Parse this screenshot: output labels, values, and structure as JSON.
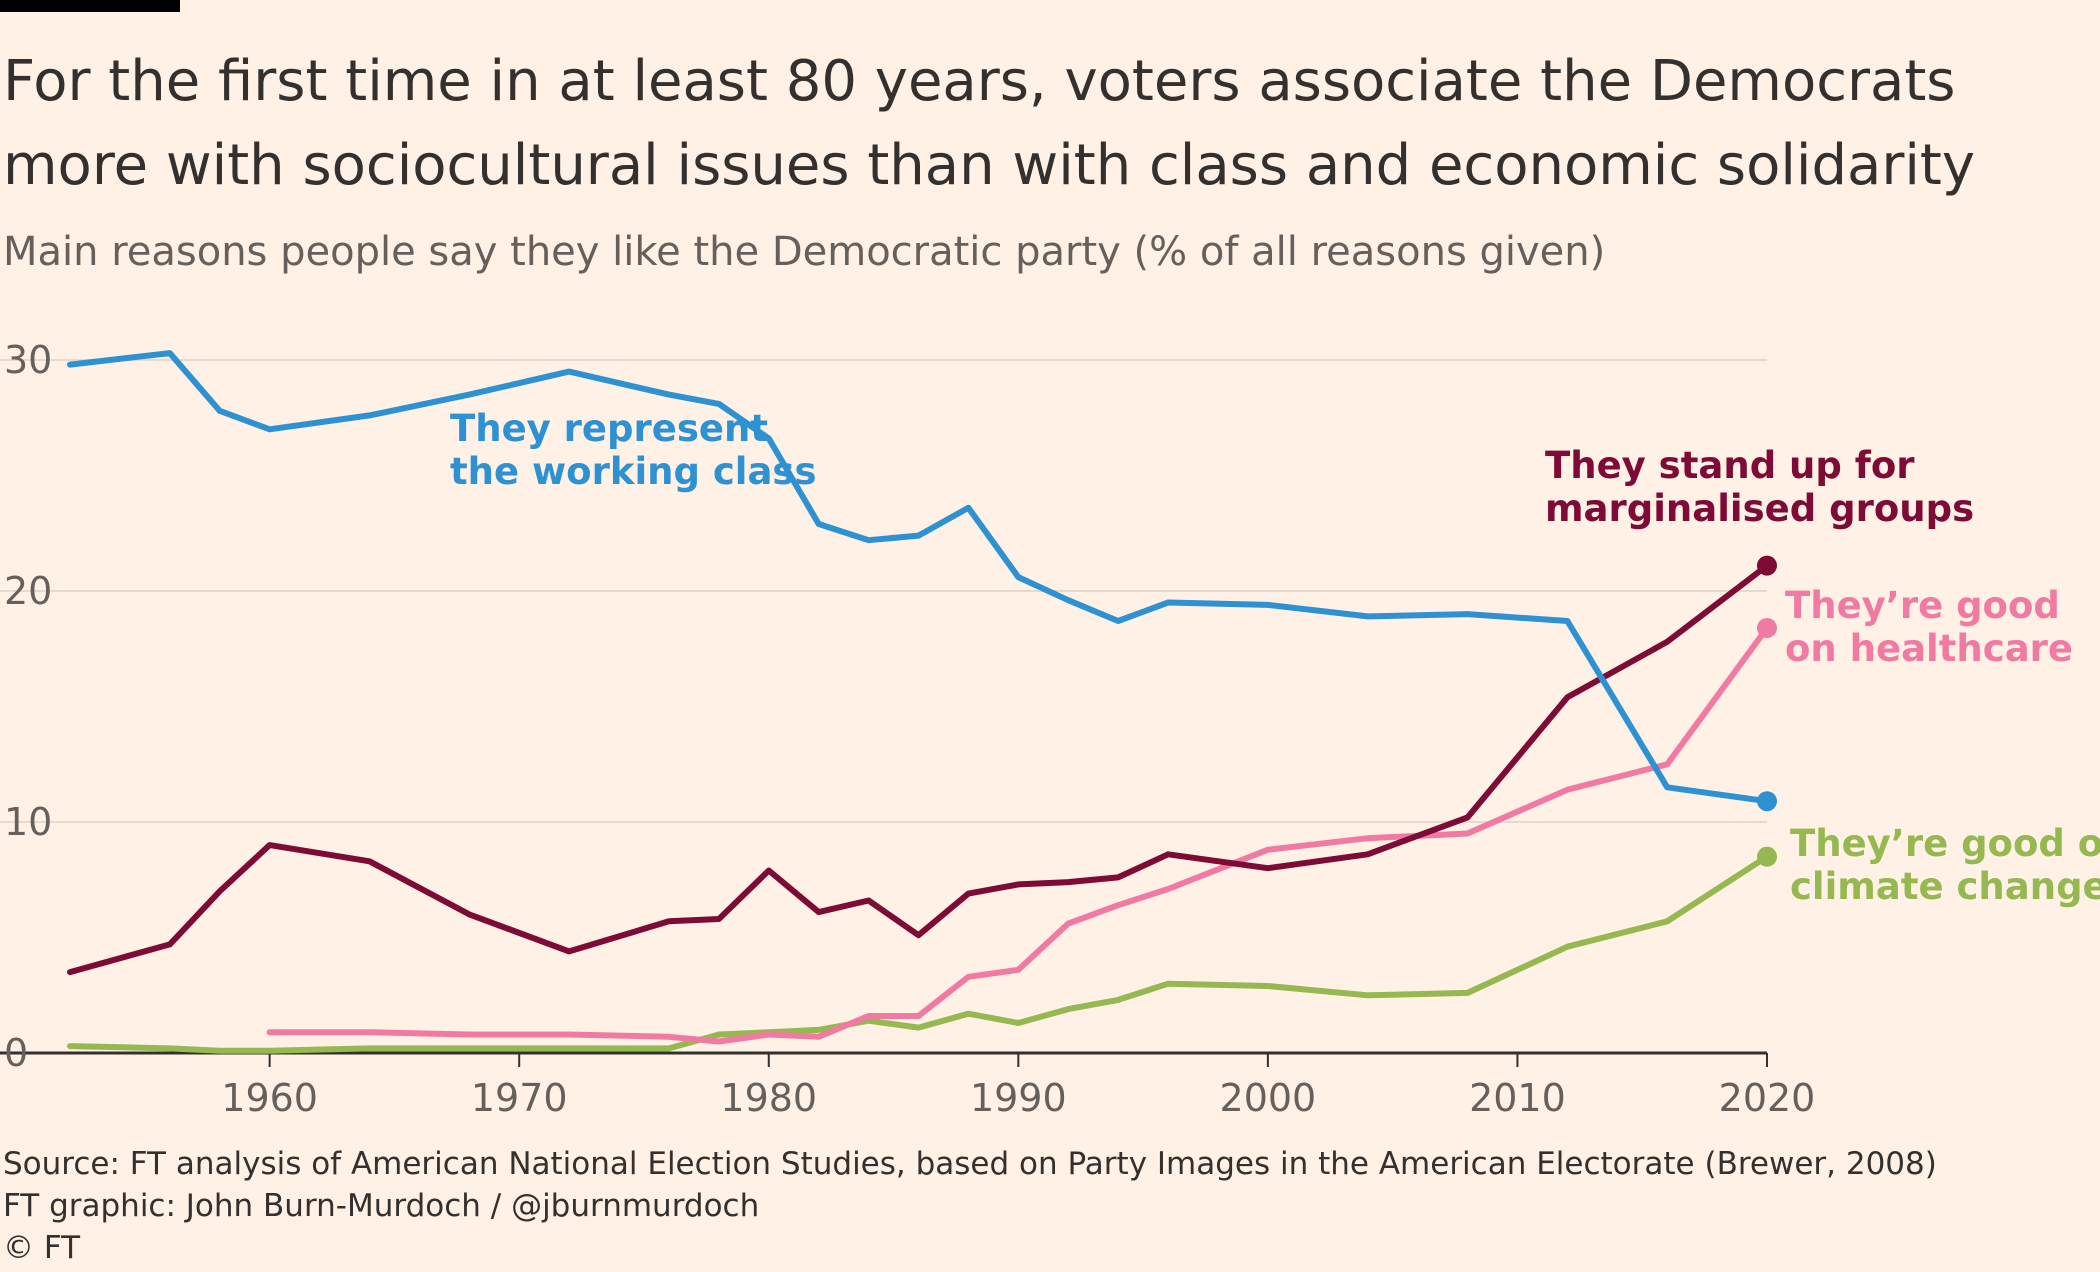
{
  "header": {
    "title": "For the first time in at least 80 years, voters associate the Democrats more with sociocultural issues than with class and economic solidarity",
    "subtitle": "Main reasons people say they like the Democratic party (% of all reasons given)"
  },
  "footer": {
    "source": "Source: FT analysis of American National Election Studies, based on Party Images in the American Electorate (Brewer, 2008)",
    "credit": "FT graphic: John Burn-Murdoch / @jburnmurdoch",
    "copyright": "© FT"
  },
  "chart_data": {
    "type": "line",
    "title": "For the first time in at least 80 years, voters associate the Democrats more with sociocultural issues than with class and economic solidarity",
    "subtitle": "Main reasons people say they like the Democratic party (% of all reasons given)",
    "xlim": [
      1952,
      2020
    ],
    "ylim": [
      0,
      30
    ],
    "x_ticks": [
      "1960",
      "1970",
      "1980",
      "1990",
      "2000",
      "2010",
      "2020"
    ],
    "y_ticks": [
      "0",
      "10",
      "20",
      "30"
    ],
    "grid": true,
    "legend": "inline labels",
    "series": [
      {
        "name": "They represent the working class",
        "label_lines": [
          "They represent",
          "the working class"
        ],
        "color": "#2e91d2",
        "end_marker": true,
        "points": [
          [
            1952,
            29.8
          ],
          [
            1956,
            30.3
          ],
          [
            1958,
            27.8
          ],
          [
            1960,
            27.0
          ],
          [
            1964,
            27.6
          ],
          [
            1968,
            28.5
          ],
          [
            1972,
            29.5
          ],
          [
            1976,
            28.5
          ],
          [
            1978,
            28.1
          ],
          [
            1980,
            26.6
          ],
          [
            1982,
            22.9
          ],
          [
            1984,
            22.2
          ],
          [
            1986,
            22.4
          ],
          [
            1988,
            23.6
          ],
          [
            1990,
            20.6
          ],
          [
            1992,
            19.6
          ],
          [
            1994,
            18.7
          ],
          [
            1996,
            19.5
          ],
          [
            2000,
            19.4
          ],
          [
            2004,
            18.9
          ],
          [
            2008,
            19.0
          ],
          [
            2012,
            18.7
          ],
          [
            2016,
            11.5
          ],
          [
            2020,
            10.9
          ]
        ]
      },
      {
        "name": "They stand up for marginalised groups",
        "label_lines": [
          "They stand up for",
          "marginalised groups"
        ],
        "color": "#7d0b36",
        "end_marker": true,
        "points": [
          [
            1952,
            3.5
          ],
          [
            1956,
            4.7
          ],
          [
            1958,
            7.0
          ],
          [
            1960,
            9.0
          ],
          [
            1964,
            8.3
          ],
          [
            1968,
            6.0
          ],
          [
            1972,
            4.4
          ],
          [
            1976,
            5.7
          ],
          [
            1978,
            5.8
          ],
          [
            1980,
            7.9
          ],
          [
            1982,
            6.1
          ],
          [
            1984,
            6.6
          ],
          [
            1986,
            5.1
          ],
          [
            1988,
            6.9
          ],
          [
            1990,
            7.3
          ],
          [
            1992,
            7.4
          ],
          [
            1994,
            7.6
          ],
          [
            1996,
            8.6
          ],
          [
            2000,
            8.0
          ],
          [
            2004,
            8.6
          ],
          [
            2008,
            10.2
          ],
          [
            2012,
            15.4
          ],
          [
            2016,
            17.8
          ],
          [
            2020,
            21.1
          ]
        ]
      },
      {
        "name": "They're good on healthcare",
        "label_lines": [
          "They’re good",
          "on healthcare"
        ],
        "color": "#f17aa3",
        "end_marker": true,
        "points": [
          [
            1960,
            0.9
          ],
          [
            1964,
            0.9
          ],
          [
            1968,
            0.8
          ],
          [
            1972,
            0.8
          ],
          [
            1976,
            0.7
          ],
          [
            1978,
            0.5
          ],
          [
            1980,
            0.8
          ],
          [
            1982,
            0.7
          ],
          [
            1984,
            1.6
          ],
          [
            1986,
            1.6
          ],
          [
            1988,
            3.3
          ],
          [
            1990,
            3.6
          ],
          [
            1992,
            5.6
          ],
          [
            1994,
            6.4
          ],
          [
            1996,
            7.1
          ],
          [
            2000,
            8.8
          ],
          [
            2004,
            9.3
          ],
          [
            2008,
            9.5
          ],
          [
            2012,
            11.4
          ],
          [
            2016,
            12.5
          ],
          [
            2020,
            18.4
          ]
        ]
      },
      {
        "name": "They're good on climate change",
        "label_lines": [
          "They’re good on",
          "climate change"
        ],
        "color": "#96b850",
        "end_marker": true,
        "points": [
          [
            1952,
            0.3
          ],
          [
            1956,
            0.2
          ],
          [
            1958,
            0.1
          ],
          [
            1960,
            0.1
          ],
          [
            1964,
            0.2
          ],
          [
            1968,
            0.2
          ],
          [
            1972,
            0.2
          ],
          [
            1976,
            0.2
          ],
          [
            1978,
            0.8
          ],
          [
            1980,
            0.9
          ],
          [
            1982,
            1.0
          ],
          [
            1984,
            1.4
          ],
          [
            1986,
            1.1
          ],
          [
            1988,
            1.7
          ],
          [
            1990,
            1.3
          ],
          [
            1992,
            1.9
          ],
          [
            1994,
            2.3
          ],
          [
            1996,
            3.0
          ],
          [
            2000,
            2.9
          ],
          [
            2004,
            2.5
          ],
          [
            2008,
            2.6
          ],
          [
            2012,
            4.6
          ],
          [
            2016,
            5.7
          ],
          [
            2020,
            8.5
          ]
        ]
      }
    ]
  }
}
